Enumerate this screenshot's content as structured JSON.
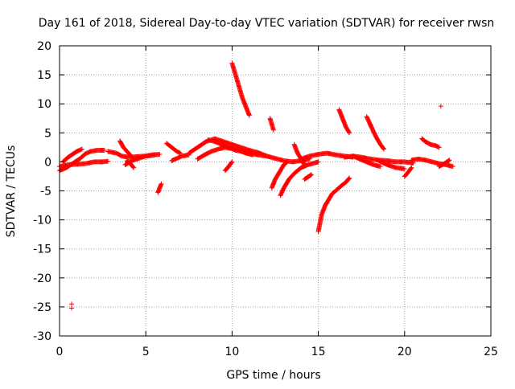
{
  "chart_data": {
    "type": "scatter",
    "title": "Day 161 of 2018, Sidereal Day-to-day VTEC variation (SDTVAR) for receiver rwsn",
    "xlabel": "GPS time / hours",
    "ylabel": "SDTVAR / TECUs",
    "xlim": [
      0,
      25
    ],
    "ylim": [
      -30,
      20
    ],
    "x_ticks": [
      0,
      5,
      10,
      15,
      20,
      25
    ],
    "y_ticks": [
      -30,
      -25,
      -20,
      -15,
      -10,
      -5,
      0,
      5,
      10,
      15,
      20
    ],
    "grid": true,
    "marker": "+",
    "series_color": "#ff0000",
    "segments": [
      {
        "name": "baseline-low",
        "x": [
          0.0,
          0.5,
          1.0,
          1.5,
          2.0,
          2.5,
          2.8
        ],
        "y": [
          -0.8,
          -0.5,
          -0.4,
          -0.3,
          0.0,
          0.0,
          0.1
        ]
      },
      {
        "name": "baseline-rise",
        "x": [
          0.0,
          0.4,
          0.8,
          1.2,
          1.5,
          1.8,
          2.2,
          2.6
        ],
        "y": [
          -1.5,
          -1.0,
          -0.2,
          0.6,
          1.4,
          1.8,
          2.0,
          2.0
        ]
      },
      {
        "name": "arc-1",
        "x": [
          0.2,
          0.5,
          0.8,
          1.0,
          1.3
        ],
        "y": [
          0.0,
          0.8,
          1.4,
          1.8,
          2.2
        ]
      },
      {
        "name": "arc-2",
        "x": [
          2.8,
          3.3,
          3.6,
          4.0,
          4.5,
          5.0,
          5.5
        ],
        "y": [
          1.8,
          1.5,
          1.0,
          0.8,
          0.9,
          1.0,
          1.2
        ]
      },
      {
        "name": "arc-3",
        "x": [
          3.5,
          3.7,
          4.0,
          4.3
        ],
        "y": [
          3.6,
          2.5,
          1.5,
          0.5
        ]
      },
      {
        "name": "arc-4",
        "x": [
          3.8,
          4.2,
          4.6,
          5.0,
          5.4,
          5.8
        ],
        "y": [
          -0.5,
          0.2,
          0.6,
          1.0,
          1.2,
          1.3
        ]
      },
      {
        "name": "arc-5",
        "x": [
          3.9,
          4.1,
          4.3
        ],
        "y": [
          0.2,
          -0.3,
          -1.0
        ]
      },
      {
        "name": "burst-5-8",
        "x": [
          5.7,
          5.8,
          5.9
        ],
        "y": [
          -5.3,
          -4.5,
          -3.8
        ]
      },
      {
        "name": "arc-6",
        "x": [
          6.2,
          6.5,
          6.8,
          7.0
        ],
        "y": [
          3.2,
          2.5,
          1.8,
          1.5
        ]
      },
      {
        "name": "arc-7",
        "x": [
          6.5,
          6.8,
          7.1,
          7.5
        ],
        "y": [
          0.2,
          0.6,
          1.0,
          1.2
        ]
      },
      {
        "name": "arc-8",
        "x": [
          7.5,
          8.0,
          8.5,
          9.0,
          9.5,
          10.0,
          10.5,
          11.0
        ],
        "y": [
          1.5,
          2.5,
          3.5,
          4.0,
          3.5,
          3.0,
          2.5,
          2.0
        ]
      },
      {
        "name": "arc-9",
        "x": [
          8.0,
          8.4,
          8.8,
          9.2,
          9.6,
          10.0,
          10.4,
          10.8,
          11.2
        ],
        "y": [
          0.5,
          1.2,
          1.8,
          2.2,
          2.5,
          2.3,
          2.0,
          1.5,
          1.2
        ]
      },
      {
        "name": "arc-10",
        "x": [
          8.6,
          9.0,
          9.4,
          9.8,
          10.2,
          10.6,
          11.0,
          11.5,
          12.0
        ],
        "y": [
          3.8,
          3.5,
          3.0,
          2.5,
          2.0,
          1.8,
          1.5,
          1.2,
          1.0
        ]
      },
      {
        "name": "spike-10-1",
        "x": [
          10.0,
          10.1,
          10.2,
          10.3,
          10.4,
          10.5,
          10.6,
          10.8,
          11.0
        ],
        "y": [
          17.0,
          16.0,
          15.0,
          14.0,
          13.0,
          12.0,
          11.0,
          9.5,
          8.0
        ]
      },
      {
        "name": "arc-11",
        "x": [
          9.6,
          9.8,
          10.0
        ],
        "y": [
          -1.5,
          -0.8,
          0.0
        ]
      },
      {
        "name": "arc-12",
        "x": [
          11.0,
          11.5,
          12.0,
          12.5,
          13.0,
          13.5,
          14.0,
          14.5
        ],
        "y": [
          2.0,
          1.6,
          1.0,
          0.6,
          0.2,
          0.0,
          0.2,
          0.5
        ]
      },
      {
        "name": "arc-13",
        "x": [
          12.2,
          12.3,
          12.4
        ],
        "y": [
          7.5,
          6.5,
          5.5
        ]
      },
      {
        "name": "arc-14",
        "x": [
          12.3,
          12.5,
          12.8,
          13.0,
          13.2
        ],
        "y": [
          -4.5,
          -3.0,
          -1.5,
          -0.5,
          0.0
        ]
      },
      {
        "name": "arc-15",
        "x": [
          12.8,
          13.0,
          13.3,
          13.6,
          14.0,
          14.4,
          15.0
        ],
        "y": [
          -5.8,
          -4.5,
          -3.0,
          -2.0,
          -1.0,
          -0.5,
          0.0
        ]
      },
      {
        "name": "arc-16",
        "x": [
          13.6,
          13.8,
          14.0,
          14.2
        ],
        "y": [
          3.0,
          1.5,
          0.5,
          -0.5
        ]
      },
      {
        "name": "arc-17",
        "x": [
          14.0,
          14.5,
          15.0,
          15.5,
          16.0,
          16.5,
          17.0
        ],
        "y": [
          0.5,
          1.0,
          1.3,
          1.5,
          1.2,
          1.0,
          0.8
        ]
      },
      {
        "name": "arc-18",
        "x": [
          14.2,
          14.4,
          14.6
        ],
        "y": [
          -3.0,
          -2.6,
          -2.2
        ]
      },
      {
        "name": "dip-15",
        "x": [
          15.0,
          15.1,
          15.2,
          15.4,
          15.6,
          15.8,
          16.0,
          16.3,
          16.6,
          16.8
        ],
        "y": [
          -12.0,
          -10.5,
          -9.0,
          -7.5,
          -6.5,
          -5.5,
          -5.0,
          -4.2,
          -3.5,
          -2.8
        ]
      },
      {
        "name": "arc-19",
        "x": [
          16.2,
          16.4,
          16.6,
          16.8
        ],
        "y": [
          9.0,
          7.5,
          6.0,
          5.0
        ]
      },
      {
        "name": "arc-20",
        "x": [
          16.5,
          17.0,
          17.5,
          18.0,
          18.5,
          19.0,
          19.5,
          20.0,
          20.5
        ],
        "y": [
          0.8,
          1.0,
          0.8,
          0.5,
          0.3,
          0.2,
          0.0,
          0.0,
          -0.2
        ]
      },
      {
        "name": "arc-21",
        "x": [
          17.0,
          17.4,
          17.8,
          18.2,
          18.6
        ],
        "y": [
          1.0,
          0.5,
          0.0,
          -0.5,
          -0.8
        ]
      },
      {
        "name": "arc-22",
        "x": [
          17.8,
          18.0,
          18.2,
          18.4,
          18.6,
          18.8
        ],
        "y": [
          7.8,
          6.5,
          5.2,
          4.0,
          3.0,
          2.2
        ]
      },
      {
        "name": "arc-23",
        "x": [
          18.5,
          19.0,
          19.5,
          20.0
        ],
        "y": [
          0.2,
          -0.5,
          -1.0,
          -1.2
        ]
      },
      {
        "name": "arc-24",
        "x": [
          20.0,
          20.2,
          20.4
        ],
        "y": [
          -2.5,
          -1.8,
          -1.0
        ]
      },
      {
        "name": "arc-25",
        "x": [
          20.4,
          20.8,
          21.2,
          21.6,
          22.0,
          22.4,
          22.8
        ],
        "y": [
          0.3,
          0.5,
          0.3,
          0.0,
          -0.3,
          -0.5,
          -0.8
        ]
      },
      {
        "name": "arc-26",
        "x": [
          21.0,
          21.2,
          21.5,
          21.8,
          22.0
        ],
        "y": [
          4.0,
          3.5,
          3.0,
          2.8,
          2.5
        ]
      },
      {
        "name": "arc-27",
        "x": [
          22.0,
          22.3,
          22.6
        ],
        "y": [
          -0.8,
          -0.3,
          0.3
        ]
      }
    ],
    "outliers": {
      "x": [
        0.7,
        0.7,
        22.1
      ],
      "y": [
        -24.5,
        -25.2,
        9.6
      ]
    }
  }
}
